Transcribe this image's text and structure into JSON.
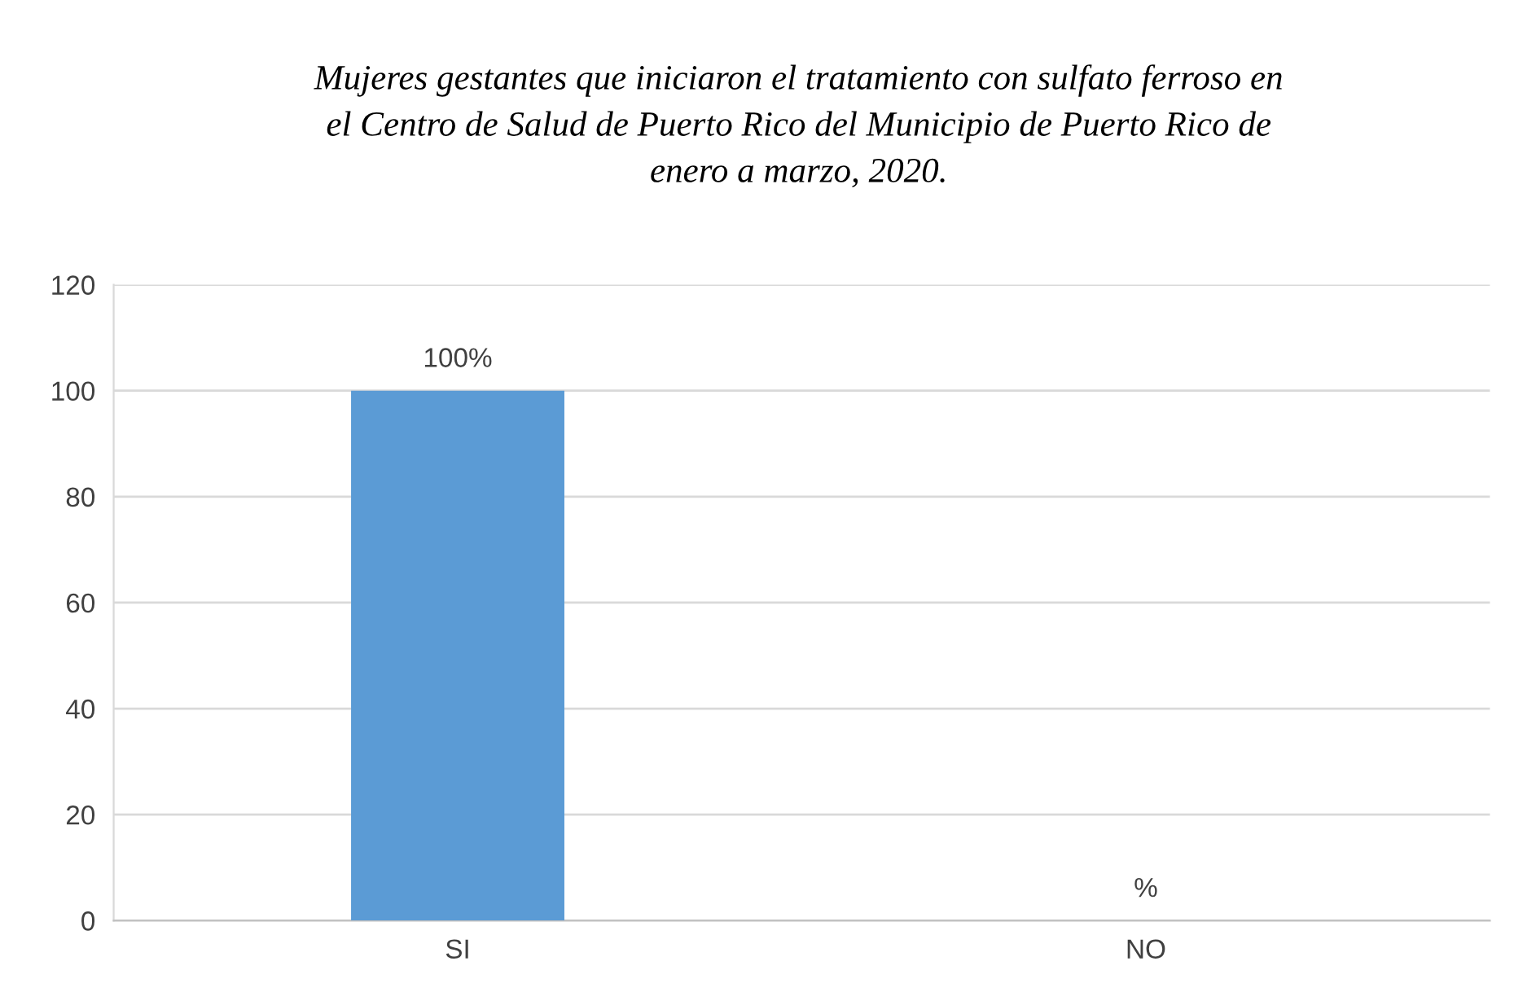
{
  "chart_data": {
    "type": "bar",
    "title": "Mujeres gestantes que iniciaron el tratamiento con sulfato ferroso en\nel Centro de Salud de Puerto Rico del Municipio de Puerto Rico de\nenero a marzo, 2020.",
    "categories": [
      "SI",
      "NO"
    ],
    "values": [
      100,
      0
    ],
    "value_labels": [
      "100%",
      "%"
    ],
    "color": "#5b9bd5",
    "ylim": [
      0,
      120
    ],
    "yticks": [
      0,
      20,
      40,
      60,
      80,
      100,
      120
    ],
    "grid": "y"
  }
}
